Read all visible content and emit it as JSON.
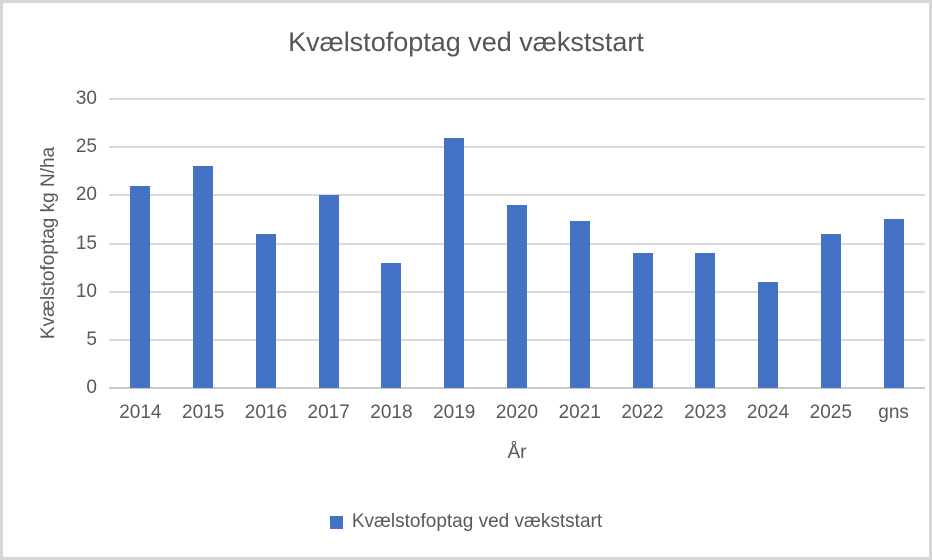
{
  "chart_data": {
    "type": "bar",
    "title": "Kvælstofoptag ved vækststart",
    "xlabel": "År",
    "ylabel": "Kvælstofoptag kg N/ha",
    "categories": [
      "2014",
      "2015",
      "2016",
      "2017",
      "2018",
      "2019",
      "2020",
      "2021",
      "2022",
      "2023",
      "2024",
      "2025",
      "gns"
    ],
    "values": [
      21,
      23,
      16,
      20,
      13,
      26,
      19,
      17.3,
      14,
      14,
      11,
      16,
      17.5
    ],
    "ylim": [
      0,
      30
    ],
    "yticks": [
      0,
      5,
      10,
      15,
      20,
      25,
      30
    ],
    "grid": "horizontal",
    "legend": {
      "label": "Kvælstofoptag ved vækststart",
      "position": "bottom"
    },
    "colors": {
      "bar": "#4472C4",
      "gridline": "#D9D9D9",
      "axis_line": "#C9C9C9",
      "text": "#595959",
      "frame_border": "#D6D6D6"
    }
  }
}
